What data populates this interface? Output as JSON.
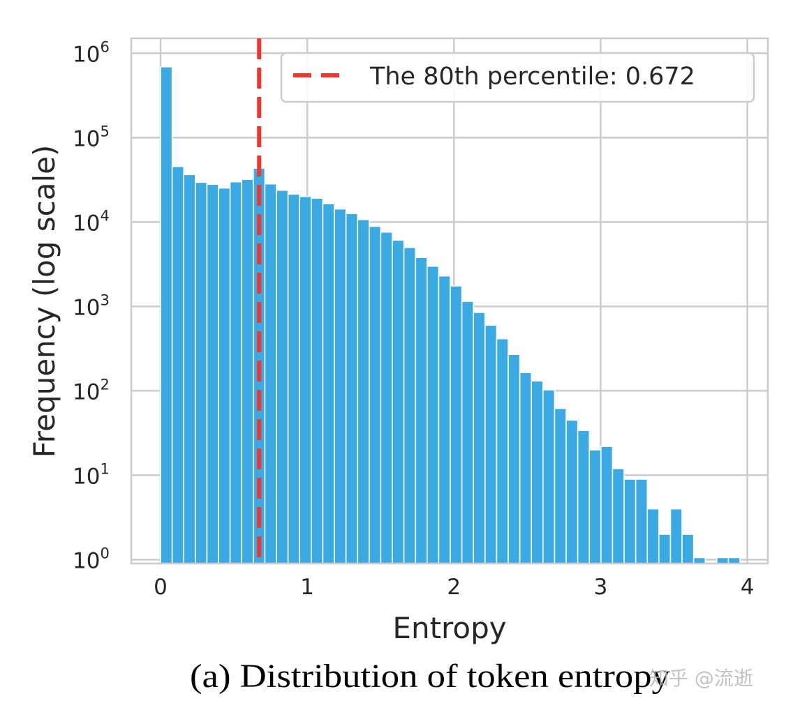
{
  "chart_data": {
    "type": "bar",
    "subtype": "histogram",
    "title": "",
    "xlabel": "Entropy",
    "ylabel": "Frequency (log scale)",
    "y_scale": "log",
    "xlim": [
      -0.2,
      4.14
    ],
    "ylim": [
      0.9,
      1500000.0
    ],
    "grid": true,
    "bin_width": 0.079,
    "bin_start": 0,
    "bin_counts": [
      690000,
      45500,
      36500,
      29600,
      28000,
      25300,
      30000,
      32000,
      43500,
      28300,
      23800,
      21400,
      20100,
      19200,
      16500,
      14300,
      12600,
      10700,
      8900,
      7600,
      6100,
      5000,
      3800,
      3000,
      2300,
      1750,
      1150,
      850,
      600,
      415,
      270,
      165,
      131,
      103,
      62,
      45,
      34,
      20,
      22,
      12,
      9,
      9,
      4,
      2,
      4,
      2,
      1,
      0,
      1,
      1
    ],
    "x_ticks": [
      {
        "value": 0,
        "label": "0"
      },
      {
        "value": 1,
        "label": "1"
      },
      {
        "value": 2,
        "label": "2"
      },
      {
        "value": 3,
        "label": "3"
      },
      {
        "value": 4,
        "label": "4"
      }
    ],
    "y_ticks": [
      {
        "exp": 0,
        "base": "10",
        "sup": "0"
      },
      {
        "exp": 1,
        "base": "10",
        "sup": "1"
      },
      {
        "exp": 2,
        "base": "10",
        "sup": "2"
      },
      {
        "exp": 3,
        "base": "10",
        "sup": "3"
      },
      {
        "exp": 4,
        "base": "10",
        "sup": "4"
      },
      {
        "exp": 5,
        "base": "10",
        "sup": "5"
      },
      {
        "exp": 6,
        "base": "10",
        "sup": "6"
      }
    ],
    "reference_line": {
      "x": 0.672,
      "style": "dashed",
      "label": "The 80th percentile: 0.672"
    },
    "legend_position": "top-right",
    "colors": {
      "bar": "#3ba9e3",
      "reference_line": "#f0372e",
      "grid": "#cccccc"
    }
  },
  "caption": "(a) Distribution of token entropy",
  "watermark": "知乎 @流逝"
}
